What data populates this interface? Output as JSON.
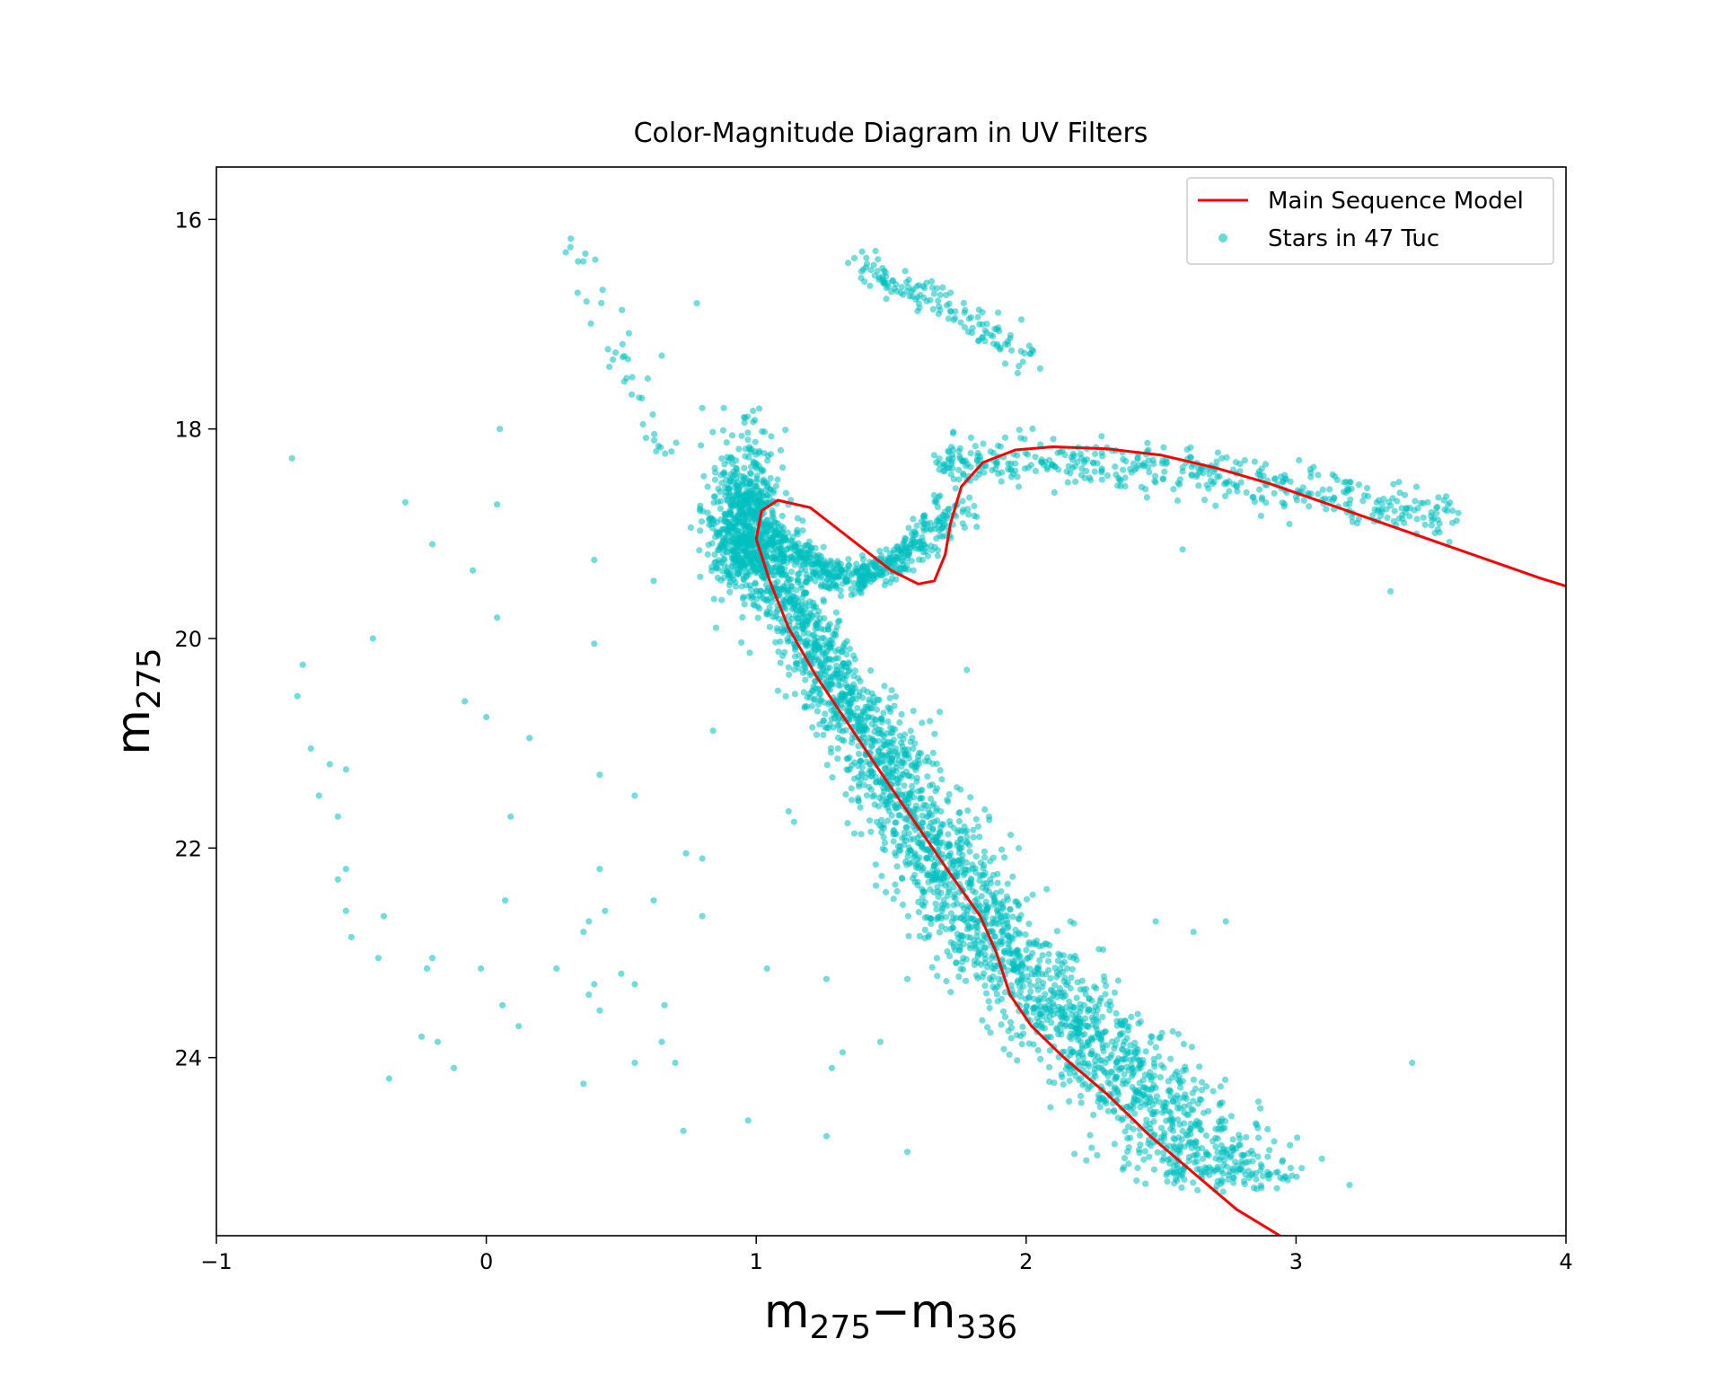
{
  "chart_data": {
    "type": "scatter",
    "title": "Color-Magnitude Diagram in UV Filters",
    "xlabel": {
      "base": "m",
      "sub1": "275",
      "op": "−",
      "base2": "m",
      "sub2": "336"
    },
    "ylabel": {
      "base": "m",
      "sub": "275"
    },
    "xlim": [
      -1,
      4
    ],
    "ylim": [
      25.7,
      15.5
    ],
    "y_inverted": true,
    "xticks": [
      -1,
      0,
      1,
      2,
      3,
      4
    ],
    "xtick_labels": [
      "−1",
      "0",
      "1",
      "2",
      "3",
      "4"
    ],
    "yticks": [
      16,
      18,
      20,
      22,
      24
    ],
    "ytick_labels": [
      "16",
      "18",
      "20",
      "22",
      "24"
    ],
    "grid": false,
    "legend_position": "top-right",
    "colors": {
      "stars": "#00bfbf",
      "model": "#ff0000"
    },
    "series": [
      {
        "name": "Main Sequence Model",
        "kind": "line",
        "points": [
          [
            1.0,
            19.05
          ],
          [
            1.02,
            18.78
          ],
          [
            1.08,
            18.68
          ],
          [
            1.2,
            18.75
          ],
          [
            1.3,
            18.95
          ],
          [
            1.4,
            19.15
          ],
          [
            1.5,
            19.35
          ],
          [
            1.6,
            19.48
          ],
          [
            1.66,
            19.45
          ],
          [
            1.7,
            19.2
          ],
          [
            1.72,
            18.9
          ],
          [
            1.76,
            18.55
          ],
          [
            1.84,
            18.32
          ],
          [
            1.96,
            18.2
          ],
          [
            2.1,
            18.17
          ],
          [
            2.3,
            18.19
          ],
          [
            2.5,
            18.25
          ],
          [
            2.7,
            18.37
          ],
          [
            2.9,
            18.52
          ],
          [
            3.1,
            18.7
          ],
          [
            3.3,
            18.88
          ],
          [
            3.5,
            19.06
          ],
          [
            3.7,
            19.24
          ],
          [
            3.9,
            19.42
          ],
          [
            4.0,
            19.5
          ]
        ],
        "points_lower": [
          [
            1.0,
            19.05
          ],
          [
            1.05,
            19.45
          ],
          [
            1.12,
            19.9
          ],
          [
            1.22,
            20.35
          ],
          [
            1.35,
            20.85
          ],
          [
            1.48,
            21.35
          ],
          [
            1.6,
            21.8
          ],
          [
            1.72,
            22.25
          ],
          [
            1.83,
            22.65
          ],
          [
            1.89,
            23.0
          ],
          [
            1.94,
            23.4
          ],
          [
            2.02,
            23.7
          ],
          [
            2.14,
            24.0
          ],
          [
            2.3,
            24.35
          ],
          [
            2.46,
            24.75
          ],
          [
            2.62,
            25.1
          ],
          [
            2.78,
            25.45
          ],
          [
            2.94,
            25.7
          ]
        ]
      },
      {
        "name": "Stars in 47 Tuc",
        "kind": "scatter",
        "seed": 4717,
        "outliers": [
          [
            -0.72,
            18.28
          ],
          [
            -0.3,
            18.7
          ],
          [
            -0.2,
            19.1
          ],
          [
            -0.05,
            19.35
          ],
          [
            0.05,
            18.0
          ],
          [
            0.04,
            18.72
          ],
          [
            0.04,
            19.8
          ],
          [
            -0.42,
            20.0
          ],
          [
            -0.68,
            20.25
          ],
          [
            -0.7,
            20.55
          ],
          [
            -0.65,
            21.05
          ],
          [
            -0.62,
            21.5
          ],
          [
            -0.58,
            21.2
          ],
          [
            -0.52,
            21.25
          ],
          [
            -0.55,
            21.7
          ],
          [
            -0.52,
            22.2
          ],
          [
            -0.55,
            22.3
          ],
          [
            -0.52,
            22.6
          ],
          [
            -0.5,
            22.85
          ],
          [
            -0.38,
            22.65
          ],
          [
            -0.4,
            23.05
          ],
          [
            -0.2,
            23.05
          ],
          [
            -0.22,
            23.15
          ],
          [
            -0.02,
            23.15
          ],
          [
            0.06,
            23.5
          ],
          [
            0.12,
            23.7
          ],
          [
            -0.24,
            23.8
          ],
          [
            -0.18,
            23.85
          ],
          [
            -0.12,
            24.1
          ],
          [
            -0.36,
            24.2
          ],
          [
            0.07,
            22.5
          ],
          [
            0.09,
            21.7
          ],
          [
            0.16,
            20.95
          ],
          [
            0.0,
            20.75
          ],
          [
            -0.08,
            20.6
          ],
          [
            0.4,
            19.25
          ],
          [
            0.4,
            20.05
          ],
          [
            0.42,
            21.3
          ],
          [
            0.55,
            21.5
          ],
          [
            0.42,
            22.2
          ],
          [
            0.38,
            22.7
          ],
          [
            0.44,
            22.6
          ],
          [
            0.36,
            22.8
          ],
          [
            0.4,
            23.3
          ],
          [
            0.5,
            23.2
          ],
          [
            0.55,
            23.3
          ],
          [
            0.38,
            23.4
          ],
          [
            0.42,
            23.55
          ],
          [
            0.26,
            23.15
          ],
          [
            0.36,
            24.25
          ],
          [
            0.55,
            24.05
          ],
          [
            0.62,
            22.5
          ],
          [
            0.65,
            23.85
          ],
          [
            0.7,
            24.05
          ],
          [
            0.73,
            24.7
          ],
          [
            0.66,
            23.5
          ],
          [
            0.74,
            22.05
          ],
          [
            0.8,
            22.1
          ],
          [
            0.8,
            22.65
          ],
          [
            0.97,
            24.6
          ],
          [
            1.04,
            23.15
          ],
          [
            0.84,
            20.88
          ],
          [
            1.12,
            21.65
          ],
          [
            1.14,
            21.75
          ],
          [
            1.26,
            23.25
          ],
          [
            1.26,
            24.75
          ],
          [
            1.32,
            23.95
          ],
          [
            1.28,
            24.1
          ],
          [
            1.56,
            24.9
          ],
          [
            1.46,
            23.85
          ],
          [
            1.56,
            23.25
          ],
          [
            3.43,
            24.05
          ],
          [
            2.74,
            22.7
          ],
          [
            2.62,
            22.8
          ],
          [
            2.48,
            22.7
          ],
          [
            0.62,
            19.45
          ],
          [
            0.8,
            17.8
          ],
          [
            0.88,
            17.8
          ],
          [
            0.78,
            16.8
          ],
          [
            0.65,
            17.3
          ],
          [
            1.68,
            20.7
          ],
          [
            1.78,
            20.3
          ],
          [
            1.2,
            20.35
          ],
          [
            3.35,
            19.55
          ],
          [
            2.58,
            19.15
          ]
        ]
      }
    ]
  }
}
